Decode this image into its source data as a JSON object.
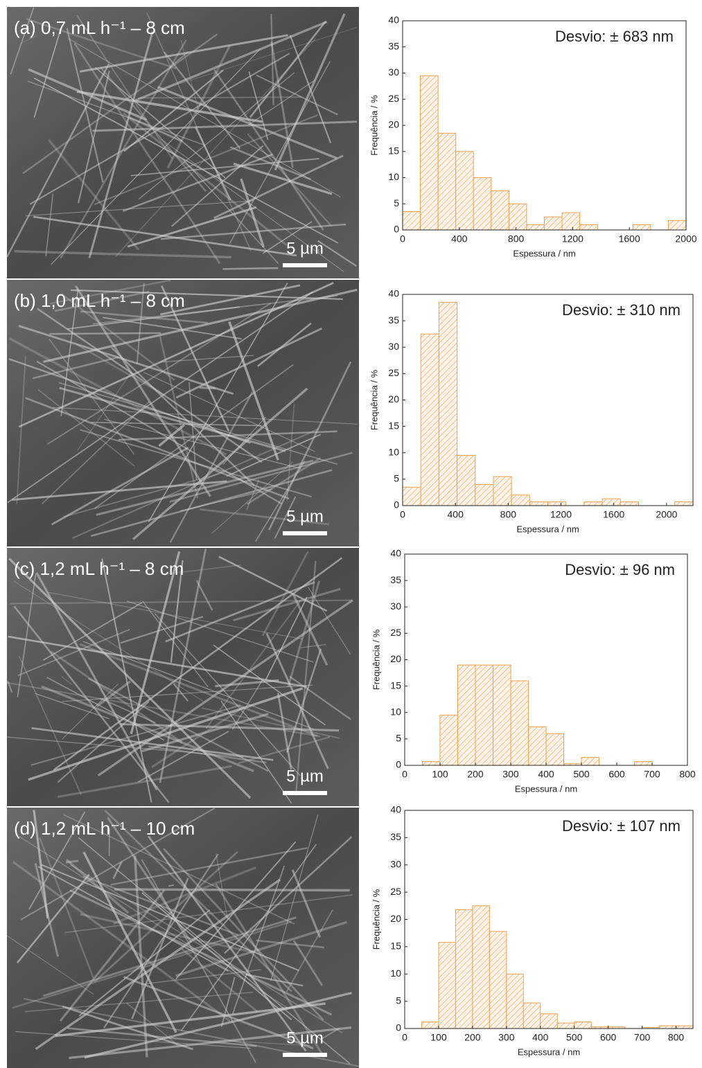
{
  "images": [
    {
      "caption": "(a) 0,7 mL h⁻¹ – 8 cm",
      "scale_bar": "5 µm"
    },
    {
      "caption": "(b) 1,0 mL h⁻¹ – 8 cm",
      "scale_bar": "5 µm"
    },
    {
      "caption": "(c) 1,2 mL h⁻¹ – 8 cm",
      "scale_bar": "5 µm"
    },
    {
      "caption": "(d) 1,2 mL h⁻¹ – 10 cm",
      "scale_bar": "5 µm"
    }
  ],
  "chart_data": [
    {
      "type": "histogram",
      "annotation": "Desvio: ± 683 nm",
      "x_label": "Espessura / nm",
      "y_label": "Frequência / %",
      "color": "#f0a050",
      "bins": [
        0,
        125,
        250,
        375,
        500,
        625,
        750,
        875,
        1000,
        1125,
        1250,
        1375,
        1500,
        1625,
        1750,
        1875,
        2000
      ],
      "values": [
        3.5,
        29.5,
        18.5,
        15,
        10,
        7.5,
        5,
        1,
        2.5,
        3.3,
        1,
        0,
        0,
        1,
        0,
        1.8
      ],
      "xlim": [
        0,
        2000
      ],
      "xticks": [
        0,
        400,
        800,
        1200,
        1600,
        2000
      ],
      "ylim": [
        0,
        40
      ],
      "yticks": [
        0,
        5,
        10,
        15,
        20,
        25,
        30,
        35,
        40
      ]
    },
    {
      "type": "histogram",
      "annotation": "Desvio: ± 310 nm",
      "x_label": "Espessura / nm",
      "y_label": "Frequência / %",
      "color": "#f0a050",
      "bins": [
        0,
        137.5,
        275,
        412.5,
        550,
        687.5,
        825,
        962.5,
        1100,
        1237.5,
        1375,
        1512.5,
        1650,
        1787.5,
        1925,
        2062.5,
        2200
      ],
      "values": [
        3.5,
        32.5,
        38.5,
        9.5,
        4,
        5.5,
        2,
        0.7,
        0.7,
        0,
        0.7,
        1.3,
        0.7,
        0,
        0,
        0.7
      ],
      "xlim": [
        0,
        2200
      ],
      "xticks": [
        0,
        400,
        800,
        1200,
        1600,
        2000
      ],
      "ylim": [
        0,
        40
      ],
      "yticks": [
        0,
        5,
        10,
        15,
        20,
        25,
        30,
        35,
        40
      ]
    },
    {
      "type": "histogram",
      "annotation": "Desvio: ± 96 nm",
      "x_label": "Espessura / nm",
      "y_label": "Frequência / %",
      "color": "#f0a050",
      "bins": [
        0,
        50,
        100,
        150,
        200,
        250,
        300,
        350,
        400,
        450,
        500,
        550,
        600,
        650,
        700,
        750,
        800
      ],
      "values": [
        0,
        0.7,
        9.5,
        19,
        19,
        19,
        16,
        7.3,
        6,
        0.3,
        1.5,
        0,
        0,
        0.7,
        0,
        0
      ],
      "xlim": [
        0,
        800
      ],
      "xticks": [
        0,
        100,
        200,
        300,
        400,
        500,
        600,
        700,
        800
      ],
      "ylim": [
        0,
        40
      ],
      "yticks": [
        0,
        5,
        10,
        15,
        20,
        25,
        30,
        35,
        40
      ]
    },
    {
      "type": "histogram",
      "annotation": "Desvio: ± 107 nm",
      "x_label": "Espessura / nm",
      "y_label": "Frequência / %",
      "color": "#f0a050",
      "bins": [
        0,
        50,
        100,
        150,
        200,
        250,
        300,
        350,
        400,
        450,
        500,
        550,
        600,
        650,
        700,
        750,
        800,
        850
      ],
      "values": [
        0,
        1.2,
        15.8,
        21.8,
        22.5,
        17.8,
        10,
        4.7,
        2.7,
        1,
        1.2,
        0.3,
        0.3,
        0,
        0.2,
        0.5,
        0.5
      ],
      "xlim": [
        0,
        850
      ],
      "xticks": [
        0,
        100,
        200,
        300,
        400,
        500,
        600,
        700,
        800
      ],
      "ylim": [
        0,
        40
      ],
      "yticks": [
        0,
        5,
        10,
        15,
        20,
        25,
        30,
        35,
        40
      ]
    }
  ]
}
